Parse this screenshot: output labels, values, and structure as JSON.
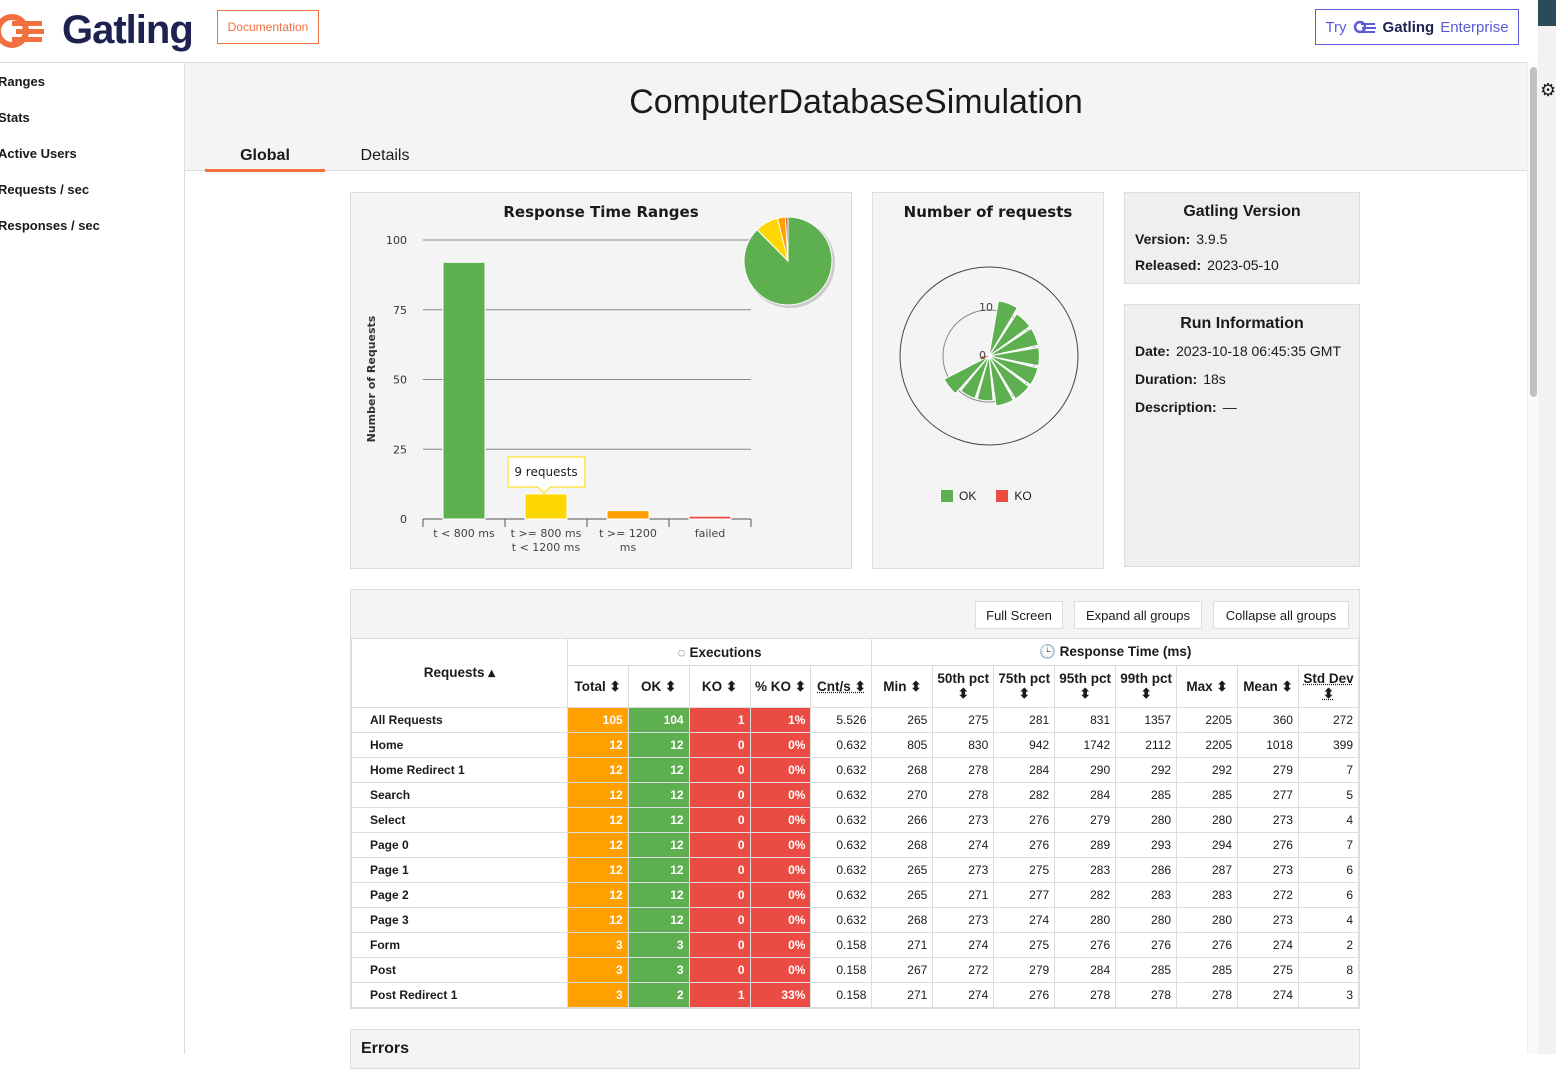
{
  "header": {
    "logo": "Gatling",
    "documentation": "Documentation",
    "try": "Try",
    "enterprise_brand": "Gatling",
    "enterprise": "Enterprise"
  },
  "sidebar": {
    "items": [
      {
        "label": "Ranges"
      },
      {
        "label": "Stats"
      },
      {
        "label": "Active Users"
      },
      {
        "label": "Requests / sec"
      },
      {
        "label": "Responses / sec"
      }
    ]
  },
  "main": {
    "title": "ComputerDatabaseSimulation",
    "tabs": [
      {
        "label": "Global"
      },
      {
        "label": "Details"
      }
    ]
  },
  "ranges_chart": {
    "title": "Response Time Ranges",
    "ylabel": "Number of Requests",
    "yticks": [
      "0",
      "25",
      "50",
      "75",
      "100"
    ],
    "ylim": [
      0,
      100
    ],
    "categories": [
      [
        "t < 800 ms"
      ],
      [
        "t >= 800 ms",
        "t < 1200 ms"
      ],
      [
        "t >= 1200",
        "ms"
      ],
      [
        "failed"
      ]
    ],
    "values": [
      92,
      9,
      3,
      1
    ],
    "colors": [
      "#5daf4f",
      "#ffd700",
      "#ffa000",
      "#ea4c44"
    ],
    "tooltip": "9 requests"
  },
  "requests_chart": {
    "title": "Number of requests",
    "ring_labels": [
      "10",
      "0"
    ],
    "legend": [
      {
        "label": "OK",
        "color": "#5daf4f"
      },
      {
        "label": "KO",
        "color": "#ea4c44"
      }
    ],
    "ok_values": [
      10,
      9,
      9,
      9,
      9,
      9,
      9,
      8,
      8,
      9,
      1
    ],
    "ko_values": [
      0,
      0,
      0,
      0,
      0,
      0,
      0,
      0,
      0,
      0,
      1
    ]
  },
  "version": {
    "title": "Gatling Version",
    "version_label": "Version:",
    "version": "3.9.5",
    "released_label": "Released:",
    "released": "2023-05-10"
  },
  "run": {
    "title": "Run Information",
    "date_label": "Date:",
    "date": "2023-10-18 06:45:35 GMT",
    "duration_label": "Duration:",
    "duration": "18s",
    "description_label": "Description:",
    "description": "—"
  },
  "stats": {
    "buttons": {
      "full_screen": "Full Screen",
      "expand": "Expand all groups",
      "collapse": "Collapse all groups"
    },
    "group_exec": "Executions",
    "group_rt": "Response Time (ms)",
    "requests_header": "Requests ▴",
    "columns": [
      "Total ⬍",
      "OK ⬍",
      "KO ⬍",
      "% KO ⬍",
      "Cnt/s ⬍",
      "Min ⬍",
      "50th pct ⬍",
      "75th pct ⬍",
      "95th pct ⬍",
      "99th pct ⬍",
      "Max ⬍",
      "Mean ⬍",
      "Std Dev ⬍"
    ],
    "rows": [
      [
        "All Requests",
        "105",
        "104",
        "1",
        "1%",
        "5.526",
        "265",
        "275",
        "281",
        "831",
        "1357",
        "2205",
        "360",
        "272"
      ],
      [
        "Home",
        "12",
        "12",
        "0",
        "0%",
        "0.632",
        "805",
        "830",
        "942",
        "1742",
        "2112",
        "2205",
        "1018",
        "399"
      ],
      [
        "Home Redirect 1",
        "12",
        "12",
        "0",
        "0%",
        "0.632",
        "268",
        "278",
        "284",
        "290",
        "292",
        "292",
        "279",
        "7"
      ],
      [
        "Search",
        "12",
        "12",
        "0",
        "0%",
        "0.632",
        "270",
        "278",
        "282",
        "284",
        "285",
        "285",
        "277",
        "5"
      ],
      [
        "Select",
        "12",
        "12",
        "0",
        "0%",
        "0.632",
        "266",
        "273",
        "276",
        "279",
        "280",
        "280",
        "273",
        "4"
      ],
      [
        "Page 0",
        "12",
        "12",
        "0",
        "0%",
        "0.632",
        "268",
        "274",
        "276",
        "289",
        "293",
        "294",
        "276",
        "7"
      ],
      [
        "Page 1",
        "12",
        "12",
        "0",
        "0%",
        "0.632",
        "265",
        "273",
        "275",
        "283",
        "286",
        "287",
        "273",
        "6"
      ],
      [
        "Page 2",
        "12",
        "12",
        "0",
        "0%",
        "0.632",
        "265",
        "271",
        "277",
        "282",
        "283",
        "283",
        "272",
        "6"
      ],
      [
        "Page 3",
        "12",
        "12",
        "0",
        "0%",
        "0.632",
        "268",
        "273",
        "274",
        "280",
        "280",
        "280",
        "273",
        "4"
      ],
      [
        "Form",
        "3",
        "3",
        "0",
        "0%",
        "0.158",
        "271",
        "274",
        "275",
        "276",
        "276",
        "276",
        "274",
        "2"
      ],
      [
        "Post",
        "3",
        "3",
        "0",
        "0%",
        "0.158",
        "267",
        "272",
        "279",
        "284",
        "285",
        "285",
        "275",
        "8"
      ],
      [
        "Post Redirect 1",
        "3",
        "2",
        "1",
        "33%",
        "0.158",
        "271",
        "274",
        "276",
        "278",
        "278",
        "278",
        "274",
        "3"
      ]
    ]
  },
  "errors": {
    "title": "Errors"
  }
}
